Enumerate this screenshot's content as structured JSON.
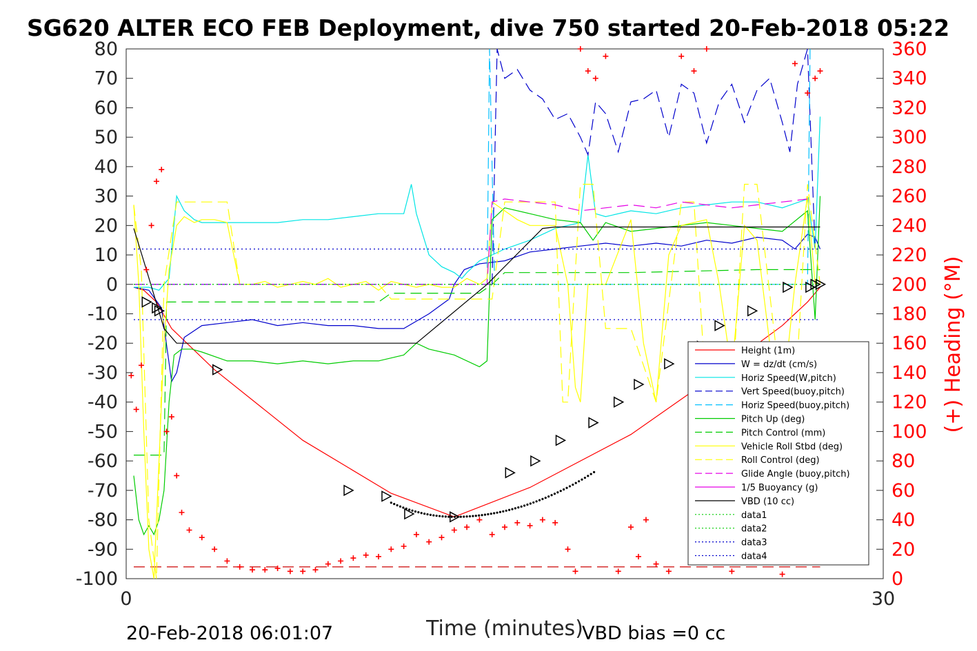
{
  "chart_data": {
    "type": "line",
    "title": "SG620 ALTER ECO FEB Deployment, dive 750 started 20-Feb-2018 05:22",
    "xlabel": "Time (minutes)",
    "ylabel_right": "(+) Heading (°M)",
    "xlim": [
      0,
      30
    ],
    "ylim_left": [
      -100,
      80
    ],
    "ylim_right": [
      0,
      360
    ],
    "x_ticks": [
      "0",
      "30"
    ],
    "y_ticks_left": [
      "80",
      "70",
      "60",
      "50",
      "40",
      "30",
      "20",
      "10",
      "0",
      "-10",
      "-20",
      "-30",
      "-40",
      "-50",
      "-60",
      "-70",
      "-80",
      "-90",
      "-100"
    ],
    "y_ticks_right": [
      "360",
      "340",
      "320",
      "300",
      "280",
      "260",
      "240",
      "220",
      "200",
      "180",
      "160",
      "140",
      "120",
      "100",
      "80",
      "60",
      "40",
      "20",
      "0"
    ],
    "footer_left": "20-Feb-2018 06:01:07",
    "footer_right": "VBD bias =0 cc",
    "legend": [
      {
        "label": "Height (1m)",
        "color": "#ff0000",
        "dash": "solid"
      },
      {
        "label": "W = dz/dt (cm/s)",
        "color": "#0000cc",
        "dash": "solid"
      },
      {
        "label": "Horiz Speed(W,pitch)",
        "color": "#00e5e5",
        "dash": "solid"
      },
      {
        "label": "Vert Speed(buoy,pitch)",
        "color": "#0000cc",
        "dash": "dashed"
      },
      {
        "label": "Horiz Speed(buoy,pitch)",
        "color": "#00bfff",
        "dash": "dashed"
      },
      {
        "label": "Pitch Up (deg)",
        "color": "#00cc00",
        "dash": "solid"
      },
      {
        "label": "Pitch Control (mm)",
        "color": "#00cc00",
        "dash": "dashed"
      },
      {
        "label": "Vehicle Roll Stbd (deg)",
        "color": "#ffff00",
        "dash": "solid"
      },
      {
        "label": "Roll Control (deg)",
        "color": "#ffff00",
        "dash": "dashed"
      },
      {
        "label": "Glide Angle (buoy,pitch)",
        "color": "#e500e5",
        "dash": "dashed"
      },
      {
        "label": "1/5 Buoyancy (g)",
        "color": "#e500e5",
        "dash": "solid"
      },
      {
        "label": "VBD (10 cc)",
        "color": "#000000",
        "dash": "solid"
      },
      {
        "label": "data1",
        "color": "#00cc00",
        "dash": "dotted"
      },
      {
        "label": "data2",
        "color": "#00cc00",
        "dash": "dotted"
      },
      {
        "label": "data3",
        "color": "#0000cc",
        "dash": "dotted"
      },
      {
        "label": "data4",
        "color": "#0000cc",
        "dash": "dotted"
      }
    ],
    "series": [
      {
        "name": "Height (1m)",
        "axis": "left",
        "color": "#ff0000",
        "dash": "solid",
        "x": [
          0.3,
          0.7,
          1.2,
          1.8,
          3.5,
          7.0,
          10.5,
          13.0,
          16.0,
          20.0,
          23.0,
          26.0,
          27.0,
          27.5
        ],
        "y": [
          -1,
          -2,
          -6,
          -15,
          -29,
          -53,
          -71,
          -79,
          -69,
          -51,
          -33,
          -14,
          -6,
          -1
        ]
      },
      {
        "name": "W = dz/dt (cm/s)",
        "axis": "left",
        "color": "#0000cc",
        "dash": "solid",
        "x": [
          0.3,
          0.9,
          1.4,
          1.8,
          2.0,
          2.3,
          3.0,
          4.0,
          5.0,
          6.0,
          7.0,
          8.0,
          9.0,
          10.0,
          11.0,
          12.0,
          12.8,
          13.0,
          13.4,
          14.0,
          15.0,
          16.0,
          17.0,
          18.0,
          19.0,
          20.0,
          21.0,
          22.0,
          23.0,
          24.0,
          25.0,
          26.0,
          26.5,
          27.0,
          27.3,
          27.5
        ],
        "y": [
          -1,
          -2,
          -8,
          -33,
          -30,
          -18,
          -14,
          -13,
          -12,
          -14,
          -13,
          -14,
          -14,
          -15,
          -15,
          -10,
          -5,
          0,
          5,
          7,
          8,
          11,
          12,
          13,
          14,
          13,
          14,
          13,
          15,
          14,
          16,
          15,
          12,
          17,
          16,
          12
        ]
      },
      {
        "name": "Horiz Speed(W,pitch)",
        "axis": "left",
        "color": "#00e5e5",
        "dash": "solid",
        "x": [
          0.3,
          0.9,
          1.3,
          1.7,
          2.0,
          2.3,
          2.7,
          3.0,
          4.0,
          5.0,
          6.0,
          7.0,
          8.0,
          9.0,
          10.0,
          11.0,
          11.3,
          11.5,
          12.0,
          12.5,
          13.0,
          13.3,
          13.5,
          14.0,
          15.0,
          16.0,
          17.0,
          18.0,
          18.3,
          18.6,
          19.0,
          20.0,
          21.0,
          22.0,
          23.0,
          24.0,
          25.0,
          26.0,
          27.0,
          27.3,
          27.5
        ],
        "y": [
          -1,
          -1,
          -2,
          2,
          30,
          25,
          22,
          21,
          21,
          21,
          21,
          22,
          22,
          23,
          24,
          24,
          34,
          24,
          10,
          6,
          4,
          2,
          4,
          8,
          12,
          15,
          19,
          21,
          44,
          24,
          23,
          25,
          24,
          26,
          27,
          28,
          28,
          26,
          29,
          12,
          57
        ]
      },
      {
        "name": "Vert Speed(buoy,pitch)",
        "axis": "left",
        "color": "#0000cc",
        "dash": "dashed",
        "x": [
          14.5,
          14.7,
          15.0,
          15.5,
          16.0,
          16.5,
          17.0,
          17.5,
          18.0,
          18.3,
          18.6,
          19.0,
          19.5,
          20.0,
          20.5,
          21.0,
          21.5,
          22.0,
          22.5,
          23.0,
          23.5,
          24.0,
          24.5,
          25.0,
          25.5,
          26.0,
          26.3,
          26.6,
          27.0,
          27.3
        ],
        "y": [
          0,
          80,
          70,
          73,
          66,
          63,
          56,
          58,
          50,
          44,
          62,
          58,
          45,
          62,
          63,
          66,
          50,
          68,
          65,
          48,
          62,
          68,
          55,
          66,
          70,
          55,
          45,
          68,
          80,
          12
        ]
      },
      {
        "name": "Horiz Speed(buoy,pitch)",
        "axis": "left",
        "color": "#00bfff",
        "dash": "dashed",
        "x": [
          14.3,
          14.4,
          14.6,
          27.0,
          27.1
        ],
        "y": [
          0,
          80,
          0,
          0,
          80
        ]
      },
      {
        "name": "Pitch Up (deg)",
        "axis": "left",
        "color": "#00cc00",
        "dash": "solid",
        "x": [
          0.3,
          0.5,
          0.7,
          0.9,
          1.1,
          1.3,
          1.5,
          1.7,
          1.9,
          2.2,
          2.6,
          3.0,
          4.0,
          5.0,
          6.0,
          7.0,
          8.0,
          9.0,
          10.0,
          11.0,
          11.5,
          12.0,
          13.0,
          14.0,
          14.3,
          14.5,
          15.0,
          16.0,
          17.0,
          18.0,
          18.5,
          19.0,
          20.0,
          21.0,
          22.0,
          23.0,
          24.0,
          25.0,
          26.0,
          27.0,
          27.3,
          27.5
        ],
        "y": [
          -65,
          -80,
          -85,
          -82,
          -85,
          -80,
          -70,
          -40,
          -24,
          -22,
          -22,
          -23,
          -26,
          -26,
          -27,
          -26,
          -27,
          -26,
          -26,
          -24,
          -20,
          -22,
          -24,
          -28,
          -26,
          22,
          26,
          24,
          22,
          21,
          15,
          21,
          18,
          19,
          20,
          21,
          20,
          19,
          18,
          25,
          -12,
          30
        ]
      },
      {
        "name": "Pitch Control (mm)",
        "axis": "left",
        "color": "#00cc00",
        "dash": "dashed",
        "x": [
          0.3,
          1.0,
          1.5,
          1.6,
          3.0,
          10.0,
          10.5,
          12.0,
          13.0,
          14.0,
          14.5,
          15.0,
          20.0,
          25.0,
          27.5
        ],
        "y": [
          -58,
          -58,
          -58,
          -6,
          -6,
          -6,
          -3,
          -3,
          -3,
          -3,
          0,
          4,
          4,
          5,
          5
        ]
      },
      {
        "name": "Vehicle Roll Stbd (deg)",
        "axis": "left",
        "color": "#ffff00",
        "dash": "solid",
        "x": [
          0.3,
          0.5,
          0.7,
          0.9,
          1.1,
          1.3,
          1.5,
          1.7,
          2.0,
          2.3,
          2.7,
          3.0,
          3.5,
          4.0,
          4.5,
          5.0,
          5.5,
          6.0,
          6.5,
          7.0,
          7.5,
          8.0,
          8.5,
          9.0,
          9.5,
          10.0,
          10.5,
          11.0,
          11.5,
          12.0,
          12.5,
          13.0,
          13.5,
          14.0,
          14.3,
          14.5,
          15.0,
          15.5,
          16.0,
          17.0,
          17.5,
          17.8,
          18.0,
          18.3,
          19.0,
          20.0,
          20.5,
          21.0,
          21.5,
          22.0,
          23.0,
          23.5,
          24.0,
          24.5,
          25.0,
          25.5,
          26.0,
          26.5,
          27.0,
          27.3
        ],
        "y": [
          27,
          0,
          -50,
          -90,
          -100,
          -60,
          -20,
          5,
          20,
          23,
          21,
          22,
          22,
          21,
          0,
          0,
          1,
          -1,
          0,
          1,
          0,
          2,
          -1,
          0,
          1,
          -2,
          1,
          0,
          -1,
          0,
          -1,
          -1,
          2,
          0,
          2,
          28,
          25,
          22,
          20,
          20,
          0,
          -35,
          -40,
          0,
          0,
          22,
          -20,
          -40,
          10,
          20,
          22,
          0,
          -30,
          20,
          15,
          -20,
          -40,
          0,
          30,
          0
        ]
      },
      {
        "name": "Roll Control (deg)",
        "axis": "left",
        "color": "#ffff00",
        "dash": "dashed",
        "x": [
          0.3,
          0.6,
          0.9,
          1.2,
          1.5,
          2.0,
          2.5,
          3.0,
          3.5,
          4.0,
          4.5,
          5.0,
          9.0,
          10.0,
          10.5,
          11.0,
          12.0,
          13.5,
          14.0,
          14.5,
          15.0,
          17.0,
          17.3,
          17.5,
          18.0,
          18.5,
          19.0,
          20.0,
          21.0,
          22.0,
          22.5,
          23.0,
          24.0,
          24.5,
          25.0,
          26.0,
          26.5,
          27.0,
          27.5
        ],
        "y": [
          27,
          5,
          -80,
          -100,
          0,
          28,
          28,
          28,
          28,
          28,
          0,
          0,
          0,
          0,
          -5,
          -5,
          -5,
          -5,
          -5,
          -5,
          28,
          28,
          -40,
          -40,
          34,
          34,
          -15,
          -15,
          -40,
          28,
          28,
          -40,
          -40,
          34,
          34,
          -40,
          -40,
          34,
          0
        ]
      },
      {
        "name": "Glide Angle (buoy,pitch)",
        "axis": "left",
        "color": "#e500e5",
        "dash": "dashed",
        "x": [
          0.3,
          5.0,
          10.0,
          14.3,
          14.5,
          15.0,
          16.0,
          17.0,
          18.0,
          19.0,
          20.0,
          21.0,
          22.0,
          23.0,
          24.0,
          25.0,
          26.0,
          27.0
        ],
        "y": [
          0,
          0,
          0,
          0,
          28,
          29,
          28,
          27,
          25,
          26,
          27,
          26,
          28,
          27,
          26,
          27,
          28,
          29
        ]
      },
      {
        "name": "1/5 Buoyancy (g)",
        "axis": "left",
        "color": "#8800ff",
        "dash": "dashed",
        "x": [
          0.3,
          14.5
        ],
        "y": [
          0,
          0
        ]
      },
      {
        "name": "VBD (10 cc)",
        "axis": "left",
        "color": "#000000",
        "dash": "solid",
        "x": [
          0.3,
          0.8,
          1.5,
          2.0,
          3.0,
          10.0,
          11.5,
          14.3,
          16.5,
          17.0,
          20.0,
          27.5
        ],
        "y": [
          19,
          5,
          -15,
          -20,
          -20,
          -20,
          -20,
          0,
          19,
          19.5,
          19.5,
          19.5
        ]
      },
      {
        "name": "data1",
        "axis": "left",
        "color": "#00cc00",
        "dash": "dotted",
        "x": [
          0.3,
          27.5
        ],
        "y": [
          0,
          0
        ]
      },
      {
        "name": "data2",
        "axis": "left",
        "color": "#00cc00",
        "dash": "dotted",
        "x": [
          0.3,
          27.5
        ],
        "y": [
          0,
          0
        ]
      },
      {
        "name": "data3",
        "axis": "left",
        "color": "#0000cc",
        "dash": "dotted",
        "x": [
          0.3,
          27.5
        ],
        "y": [
          12,
          12
        ]
      },
      {
        "name": "data4",
        "axis": "left",
        "color": "#0000cc",
        "dash": "dotted",
        "x": [
          0.3,
          27.5
        ],
        "y": [
          -12,
          -12
        ]
      },
      {
        "name": "Heading",
        "axis": "right",
        "color": "#ff0000",
        "dash": "none",
        "marker": "plus",
        "x": [
          0.2,
          0.4,
          0.6,
          0.8,
          1.0,
          1.2,
          1.4,
          1.6,
          1.8,
          2.0,
          2.2,
          2.5,
          3.0,
          3.5,
          4.0,
          4.5,
          5.0,
          5.5,
          6.0,
          6.5,
          7.0,
          7.5,
          8.0,
          8.5,
          9.0,
          9.5,
          10.0,
          10.5,
          11.0,
          11.5,
          12.0,
          12.5,
          13.0,
          13.5,
          14.0,
          14.5,
          15.0,
          15.5,
          16.0,
          16.5,
          17.0,
          17.5,
          17.8,
          18.0,
          18.3,
          18.6,
          19.0,
          19.5,
          20.0,
          20.3,
          20.6,
          21.0,
          21.5,
          22.0,
          22.5,
          23.0,
          23.5,
          24.0,
          24.5,
          25.0,
          25.5,
          26.0,
          26.5,
          27.0,
          27.3,
          27.5
        ],
        "y": [
          138,
          115,
          145,
          210,
          240,
          270,
          278,
          100,
          110,
          70,
          45,
          33,
          28,
          20,
          12,
          8,
          6,
          6,
          7,
          5,
          5,
          6,
          10,
          12,
          14,
          16,
          15,
          20,
          22,
          30,
          25,
          28,
          33,
          35,
          40,
          30,
          35,
          38,
          36,
          40,
          38,
          20,
          5,
          360,
          345,
          340,
          355,
          5,
          35,
          15,
          40,
          10,
          5,
          355,
          345,
          360,
          20,
          5,
          30,
          35,
          15,
          3,
          350,
          330,
          340,
          345
        ]
      }
    ],
    "markers": {
      "name": "Height (1m) triangles",
      "x": [
        0.8,
        1.2,
        1.3,
        3.6,
        8.8,
        10.3,
        11.2,
        13.0,
        15.2,
        16.2,
        17.2,
        18.5,
        19.5,
        20.3,
        21.5,
        22.8,
        23.5,
        24.8,
        26.2,
        27.1,
        27.3,
        27.5
      ],
      "y": [
        -6,
        -8,
        -9,
        -29,
        -70,
        -72,
        -78,
        -79,
        -64,
        -60,
        -53,
        -47,
        -40,
        -34,
        -27,
        -21,
        -14,
        -9,
        -1,
        -1,
        0,
        0
      ]
    },
    "reference_lines": [
      {
        "axis": "right",
        "y": 8,
        "color": "#cc0000",
        "dash": "dashed",
        "x": [
          0.3,
          27.5
        ]
      }
    ]
  }
}
